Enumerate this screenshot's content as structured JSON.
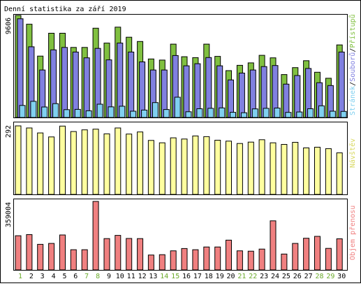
{
  "title": "Denní statistika za září 2019",
  "panels": {
    "top": {
      "max_label": "9606",
      "legend": {
        "strankek": "Stránek",
        "sep1": "/",
        "souboru": "Souborů",
        "sep2": "/",
        "pristupu": "Přístupů"
      }
    },
    "middle": {
      "max_label": "292",
      "legend": "Návštěv"
    },
    "bottom": {
      "max_label": "359004",
      "legend": "Objem přenosu"
    }
  },
  "colors": {
    "hits": "#80c040",
    "files": "#8080e0",
    "pages": "#80d0f0",
    "visits": "#ffff9f",
    "kbytes": "#f08080",
    "weekend_label": "#6aaa2a",
    "weekday_label": "#000000",
    "legend_visits": "#d8d860",
    "legend_kbytes": "#f08080"
  },
  "chart_data": [
    {
      "type": "bar",
      "title": "Denní statistika za září 2019",
      "categories": [
        "1",
        "2",
        "3",
        "4",
        "5",
        "6",
        "7",
        "8",
        "9",
        "10",
        "11",
        "12",
        "13",
        "14",
        "15",
        "16",
        "17",
        "18",
        "19",
        "20",
        "21",
        "22",
        "23",
        "24",
        "25",
        "26",
        "27",
        "28",
        "29",
        "30"
      ],
      "weekend": [
        "1",
        "7",
        "8",
        "14",
        "15",
        "21",
        "22",
        "28",
        "29"
      ],
      "ylim": [
        0,
        9606
      ],
      "series": [
        {
          "name": "Přístupů",
          "values": [
            9606,
            8780,
            5780,
            7930,
            7930,
            6590,
            6590,
            8400,
            7000,
            8500,
            7550,
            7150,
            5510,
            5400,
            6900,
            5720,
            5630,
            6900,
            5750,
            4410,
            4910,
            5140,
            5850,
            5610,
            4040,
            4690,
            5340,
            4260,
            3690,
            6830
          ]
        },
        {
          "name": "Souborů",
          "values": [
            9290,
            6650,
            4470,
            6360,
            6590,
            6160,
            5610,
            6500,
            5420,
            7000,
            6160,
            5230,
            4470,
            4470,
            5830,
            4860,
            5060,
            5640,
            4860,
            3530,
            4180,
            4470,
            4790,
            4890,
            3140,
            3950,
            4610,
            3270,
            3010,
            6160
          ]
        },
        {
          "name": "Stránek",
          "values": [
            1130,
            1520,
            990,
            1300,
            740,
            760,
            630,
            1250,
            1000,
            1060,
            590,
            700,
            1400,
            750,
            1910,
            540,
            820,
            860,
            900,
            490,
            450,
            810,
            860,
            890,
            480,
            520,
            820,
            1100,
            590,
            570
          ]
        }
      ]
    },
    {
      "type": "bar",
      "categories": [
        "1",
        "2",
        "3",
        "4",
        "5",
        "6",
        "7",
        "8",
        "9",
        "10",
        "11",
        "12",
        "13",
        "14",
        "15",
        "16",
        "17",
        "18",
        "19",
        "20",
        "21",
        "22",
        "23",
        "24",
        "25",
        "26",
        "27",
        "28",
        "29",
        "30"
      ],
      "ylim": [
        0,
        292
      ],
      "series": [
        {
          "name": "Návštěv",
          "values": [
            292,
            283,
            262,
            245,
            291,
            268,
            275,
            278,
            258,
            283,
            257,
            266,
            230,
            220,
            241,
            236,
            249,
            246,
            231,
            227,
            217,
            223,
            233,
            220,
            213,
            222,
            198,
            201,
            195,
            177
          ]
        }
      ]
    },
    {
      "type": "bar",
      "categories": [
        "1",
        "2",
        "3",
        "4",
        "5",
        "6",
        "7",
        "8",
        "9",
        "10",
        "11",
        "12",
        "13",
        "14",
        "15",
        "16",
        "17",
        "18",
        "19",
        "20",
        "21",
        "22",
        "23",
        "24",
        "25",
        "26",
        "27",
        "28",
        "29",
        "30"
      ],
      "ylim": [
        0,
        359004
      ],
      "series": [
        {
          "name": "Objem přenosu",
          "values": [
            179000,
            185000,
            134000,
            139000,
            183000,
            106000,
            106000,
            359004,
            164000,
            181000,
            165000,
            164000,
            78000,
            80000,
            100000,
            112000,
            106000,
            120000,
            120000,
            156000,
            100000,
            98000,
            109000,
            257000,
            83000,
            139000,
            166000,
            176000,
            113000,
            163000
          ]
        }
      ]
    }
  ]
}
